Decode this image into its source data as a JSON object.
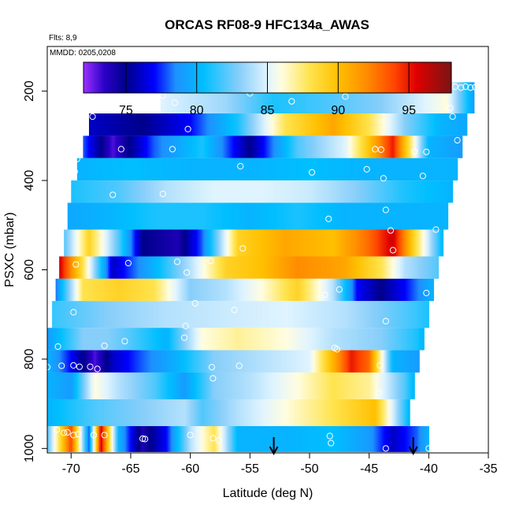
{
  "chart_data": {
    "type": "heatmap",
    "title": "ORCAS RF08-9 HFC134a_AWAS",
    "subtitle_flights": "Flts: 8,9",
    "subtitle_dates": "MMDD: 0205,0208",
    "xlabel": "Latitude (deg N)",
    "ylabel": "PSXC (mbar)",
    "xlim": [
      -72,
      -35
    ],
    "ylim": [
      1010,
      100
    ],
    "x_ticks": [
      -70,
      -65,
      -60,
      -55,
      -50,
      -45,
      -40,
      -35
    ],
    "x_tick_labels": [
      "-70",
      "-65",
      "-60",
      "-55",
      "-50",
      "-45",
      "-40",
      "-35"
    ],
    "y_ticks": [
      200,
      400,
      600,
      800,
      1000
    ],
    "y_tick_labels": [
      "200",
      "400",
      "600",
      "800",
      "1000"
    ],
    "colorbar": {
      "range": [
        72,
        98
      ],
      "ticks": [
        75,
        80,
        85,
        90,
        95
      ],
      "tick_labels": [
        "75",
        "80",
        "85",
        "90",
        "95"
      ],
      "stops": [
        {
          "v": 72,
          "c": "#9b30ff"
        },
        {
          "v": 73.5,
          "c": "#2a00c8"
        },
        {
          "v": 75,
          "c": "#00008b"
        },
        {
          "v": 77,
          "c": "#0000ff"
        },
        {
          "v": 78.5,
          "c": "#1e90ff"
        },
        {
          "v": 80.5,
          "c": "#00bfff"
        },
        {
          "v": 83,
          "c": "#87cefa"
        },
        {
          "v": 85,
          "c": "#e0f4ff"
        },
        {
          "v": 86,
          "c": "#fffde0"
        },
        {
          "v": 88,
          "c": "#ffe34d"
        },
        {
          "v": 90,
          "c": "#ffc000"
        },
        {
          "v": 92,
          "c": "#ff8c00"
        },
        {
          "v": 94,
          "c": "#ff4500"
        },
        {
          "v": 95.5,
          "c": "#e00000"
        },
        {
          "v": 98,
          "c": "#7a1414"
        }
      ]
    },
    "bands": [
      {
        "p0": 180,
        "p1": 250,
        "x0": -62.5,
        "x1": -36.2,
        "kx": [
          -62.5,
          -57,
          -53,
          -48,
          -44,
          -38.5,
          -36.2
        ],
        "kv": [
          85,
          83.5,
          81,
          82,
          83,
          86,
          79
        ]
      },
      {
        "p0": 250,
        "p1": 300,
        "x0": -68.5,
        "x1": -36.8,
        "kx": [
          -68.5,
          -64,
          -60,
          -56,
          -52,
          -48,
          -45,
          -42,
          -39,
          -36.8
        ],
        "kv": [
          76,
          75,
          77,
          81,
          88,
          91,
          88,
          83,
          80,
          79.5
        ]
      },
      {
        "p0": 300,
        "p1": 350,
        "x0": -69,
        "x1": -37.2,
        "kx": [
          -69,
          -66.5,
          -63,
          -59,
          -55,
          -51,
          -47,
          -44.5,
          -43,
          -40,
          -37.2
        ],
        "kv": [
          78,
          73,
          78,
          81,
          75,
          82,
          85,
          91,
          95,
          80,
          79
        ]
      },
      {
        "p0": 350,
        "p1": 400,
        "x0": -69.5,
        "x1": -37.6,
        "kx": [
          -69.5,
          -65,
          -60,
          -55,
          -50,
          -45,
          -40,
          -37.6
        ],
        "kv": [
          80,
          80.5,
          80,
          80,
          80.5,
          80,
          80,
          80
        ]
      },
      {
        "p0": 400,
        "p1": 450,
        "x0": -70,
        "x1": -38,
        "kx": [
          -70,
          -66,
          -62,
          -58,
          -54,
          -50,
          -46,
          -42,
          -38
        ],
        "kv": [
          81,
          82,
          84,
          85,
          85,
          84.5,
          83,
          81,
          80
        ]
      },
      {
        "p0": 450,
        "p1": 510,
        "x0": -70.3,
        "x1": -38.4,
        "kx": [
          -70.3,
          -67,
          -63,
          -59,
          -55,
          -51,
          -47,
          -43,
          -38.4
        ],
        "kv": [
          79.5,
          80,
          81,
          81,
          80,
          81,
          80,
          80,
          80
        ]
      },
      {
        "p0": 510,
        "p1": 570,
        "x0": -70.6,
        "x1": -38.8,
        "kx": [
          -70.6,
          -68.5,
          -66,
          -64,
          -61,
          -59,
          -56,
          -52,
          -48,
          -45,
          -43,
          -41,
          -38.8
        ],
        "kv": [
          82,
          89,
          82,
          75,
          74,
          78,
          89,
          91,
          90,
          93,
          96,
          88,
          80
        ]
      },
      {
        "p0": 570,
        "p1": 620,
        "x0": -71,
        "x1": -39.2,
        "kx": [
          -71,
          -69,
          -66.5,
          -63,
          -60,
          -57,
          -54,
          -51,
          -47,
          -44,
          -42,
          -39.2
        ],
        "kv": [
          96,
          88,
          76,
          80,
          84,
          89,
          90,
          92,
          91,
          88,
          84,
          82
        ]
      },
      {
        "p0": 620,
        "p1": 670,
        "x0": -71.3,
        "x1": -39.6,
        "kx": [
          -71.3,
          -69,
          -66,
          -63,
          -60,
          -57,
          -54,
          -51,
          -48,
          -46,
          -44,
          -42,
          -39.6
        ],
        "kv": [
          78,
          88,
          89,
          88,
          83,
          84,
          86,
          89,
          84,
          77,
          75,
          77,
          80
        ]
      },
      {
        "p0": 670,
        "p1": 730,
        "x0": -71.6,
        "x1": -40,
        "kx": [
          -71.6,
          -67,
          -62,
          -57,
          -52,
          -47,
          -42,
          -40
        ],
        "kv": [
          81.5,
          83,
          84,
          84.5,
          85,
          84,
          82,
          81
        ]
      },
      {
        "p0": 730,
        "p1": 780,
        "x0": -72,
        "x1": -40.4,
        "kx": [
          -72,
          -69,
          -67,
          -65,
          -62,
          -59,
          -56,
          -52,
          -48,
          -44,
          -41,
          -40.4
        ],
        "kv": [
          79,
          83,
          83,
          82,
          80,
          86,
          87,
          86,
          84,
          83,
          81,
          80
        ]
      },
      {
        "p0": 780,
        "p1": 830,
        "x0": -72,
        "x1": -40.8,
        "kx": [
          -72,
          -70,
          -68,
          -66.5,
          -64,
          -61,
          -58,
          -54,
          -50,
          -47.5,
          -46.5,
          -45,
          -43,
          -40.8
        ],
        "kv": [
          80,
          77,
          73,
          76,
          78,
          80,
          83,
          84,
          85,
          92,
          95,
          93,
          80,
          79
        ]
      },
      {
        "p0": 830,
        "p1": 890,
        "x0": -72,
        "x1": -41.2,
        "kx": [
          -72,
          -70,
          -68,
          -66,
          -63,
          -60.5,
          -58,
          -55,
          -51,
          -48,
          -45,
          -42,
          -41.2
        ],
        "kv": [
          80,
          79,
          86,
          84,
          82,
          79,
          83,
          84,
          86,
          88,
          87,
          82,
          80
        ]
      },
      {
        "p0": 890,
        "p1": 950,
        "x0": -72,
        "x1": -41.6,
        "kx": [
          -72,
          -68,
          -64,
          -60.5,
          -59,
          -56,
          -52,
          -48,
          -44.5,
          -42.5,
          -41.6
        ],
        "kv": [
          80,
          82,
          83,
          84,
          82,
          84,
          86,
          88,
          90,
          83,
          80
        ]
      },
      {
        "p0": 950,
        "p1": 1008,
        "x0": -72,
        "x1": -40,
        "kx": [
          -72,
          -70,
          -68.5,
          -67.5,
          -66,
          -64,
          -62,
          -60,
          -58,
          -56,
          -52,
          -48,
          -45,
          -43,
          -41,
          -40
        ],
        "kv": [
          82,
          94,
          78,
          96,
          80,
          74,
          77,
          84,
          88,
          80,
          80,
          80.5,
          79,
          76,
          78,
          80
        ]
      }
    ],
    "samples": [
      {
        "x": -62.4,
        "p": 195
      },
      {
        "x": -62.3,
        "p": 210
      },
      {
        "x": -58.5,
        "p": 190
      },
      {
        "x": -55,
        "p": 205
      },
      {
        "x": -50.5,
        "p": 192
      },
      {
        "x": -47,
        "p": 212
      },
      {
        "x": -37.8,
        "p": 190
      },
      {
        "x": -37.3,
        "p": 192
      },
      {
        "x": -36.9,
        "p": 190
      },
      {
        "x": -36.5,
        "p": 192
      },
      {
        "x": -36.1,
        "p": 191
      },
      {
        "x": -68.2,
        "p": 215
      },
      {
        "x": -61.3,
        "p": 226
      },
      {
        "x": -51.5,
        "p": 223
      },
      {
        "x": -38.2,
        "p": 238
      },
      {
        "x": -68.2,
        "p": 257
      },
      {
        "x": -38,
        "p": 257
      },
      {
        "x": -60.2,
        "p": 285
      },
      {
        "x": -65.8,
        "p": 330
      },
      {
        "x": -61.5,
        "p": 330
      },
      {
        "x": -44.5,
        "p": 330
      },
      {
        "x": -44,
        "p": 331
      },
      {
        "x": -41.2,
        "p": 335
      },
      {
        "x": -40.2,
        "p": 336
      },
      {
        "x": -37.6,
        "p": 310
      },
      {
        "x": -69.5,
        "p": 352
      },
      {
        "x": -69.7,
        "p": 380
      },
      {
        "x": -55.8,
        "p": 368
      },
      {
        "x": -49.8,
        "p": 382
      },
      {
        "x": -45.2,
        "p": 375
      },
      {
        "x": -43.8,
        "p": 395
      },
      {
        "x": -40.5,
        "p": 390
      },
      {
        "x": -66.5,
        "p": 432
      },
      {
        "x": -62.3,
        "p": 430
      },
      {
        "x": -48.4,
        "p": 486
      },
      {
        "x": -43.6,
        "p": 466
      },
      {
        "x": -43.2,
        "p": 512
      },
      {
        "x": -39.4,
        "p": 510
      },
      {
        "x": -55.6,
        "p": 552
      },
      {
        "x": -43,
        "p": 556
      },
      {
        "x": -69.6,
        "p": 588
      },
      {
        "x": -65.2,
        "p": 585
      },
      {
        "x": -61.1,
        "p": 582
      },
      {
        "x": -58.3,
        "p": 580
      },
      {
        "x": -60.3,
        "p": 606
      },
      {
        "x": -38.5,
        "p": 580
      },
      {
        "x": -48.7,
        "p": 656
      },
      {
        "x": -47.5,
        "p": 644
      },
      {
        "x": -40.2,
        "p": 652
      },
      {
        "x": -69.8,
        "p": 695
      },
      {
        "x": -59.6,
        "p": 675
      },
      {
        "x": -56.3,
        "p": 690
      },
      {
        "x": -60.4,
        "p": 726
      },
      {
        "x": -43.6,
        "p": 715
      },
      {
        "x": -60.5,
        "p": 752
      },
      {
        "x": -71.1,
        "p": 772
      },
      {
        "x": -67.2,
        "p": 770
      },
      {
        "x": -65.5,
        "p": 760
      },
      {
        "x": -47.9,
        "p": 775
      },
      {
        "x": -47.7,
        "p": 778
      },
      {
        "x": -72,
        "p": 818
      },
      {
        "x": -70.8,
        "p": 815
      },
      {
        "x": -69.8,
        "p": 814
      },
      {
        "x": -69.3,
        "p": 817
      },
      {
        "x": -68.4,
        "p": 817
      },
      {
        "x": -67.8,
        "p": 822
      },
      {
        "x": -58.2,
        "p": 818
      },
      {
        "x": -55.9,
        "p": 815
      },
      {
        "x": -44.1,
        "p": 814
      },
      {
        "x": -40.2,
        "p": 820
      },
      {
        "x": -58.1,
        "p": 843
      },
      {
        "x": -44.2,
        "p": 875
      },
      {
        "x": -71.2,
        "p": 958
      },
      {
        "x": -70.6,
        "p": 965
      },
      {
        "x": -70.3,
        "p": 964
      },
      {
        "x": -69.8,
        "p": 970
      },
      {
        "x": -69.4,
        "p": 968
      },
      {
        "x": -68.1,
        "p": 970
      },
      {
        "x": -67.2,
        "p": 970
      },
      {
        "x": -64,
        "p": 978
      },
      {
        "x": -63.8,
        "p": 979
      },
      {
        "x": -60,
        "p": 970
      },
      {
        "x": -58.1,
        "p": 977
      },
      {
        "x": -57.6,
        "p": 982
      },
      {
        "x": -48.3,
        "p": 972
      },
      {
        "x": -48.2,
        "p": 988
      },
      {
        "x": -43.6,
        "p": 1000
      },
      {
        "x": -40,
        "p": 1000
      }
    ],
    "arrows_at_lat": [
      -53,
      -41.3
    ]
  }
}
